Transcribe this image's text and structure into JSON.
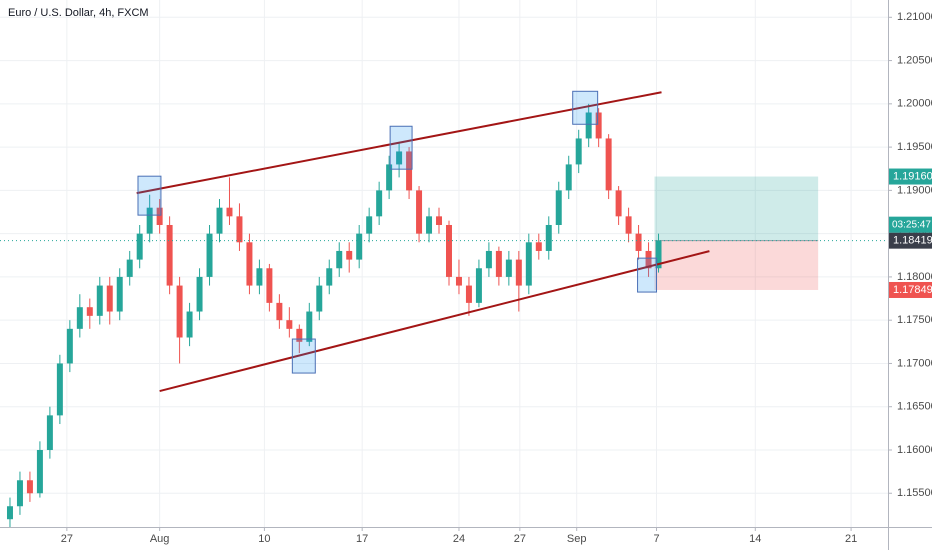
{
  "chart_data": {
    "type": "candlestick",
    "title": "Euro / U.S. Dollar, 4h, FXCM",
    "up_color": "#26a69a",
    "down_color": "#ef5350",
    "grid": true,
    "candles": [
      [
        1.152,
        1.1545,
        1.151,
        1.1535
      ],
      [
        1.1535,
        1.1575,
        1.1525,
        1.1565
      ],
      [
        1.1565,
        1.1575,
        1.154,
        1.155
      ],
      [
        1.155,
        1.161,
        1.1545,
        1.16
      ],
      [
        1.16,
        1.165,
        1.159,
        1.164
      ],
      [
        1.164,
        1.171,
        1.163,
        1.17
      ],
      [
        1.17,
        1.175,
        1.169,
        1.174
      ],
      [
        1.174,
        1.178,
        1.173,
        1.1765
      ],
      [
        1.1765,
        1.1775,
        1.174,
        1.1755
      ],
      [
        1.1755,
        1.18,
        1.1745,
        1.179
      ],
      [
        1.179,
        1.18,
        1.1745,
        1.176
      ],
      [
        1.176,
        1.181,
        1.175,
        1.18
      ],
      [
        1.18,
        1.183,
        1.179,
        1.182
      ],
      [
        1.182,
        1.186,
        1.181,
        1.185
      ],
      [
        1.185,
        1.1895,
        1.184,
        1.188
      ],
      [
        1.188,
        1.189,
        1.185,
        1.186
      ],
      [
        1.186,
        1.187,
        1.178,
        1.179
      ],
      [
        1.179,
        1.18,
        1.17,
        1.173
      ],
      [
        1.173,
        1.177,
        1.172,
        1.176
      ],
      [
        1.176,
        1.181,
        1.175,
        1.18
      ],
      [
        1.18,
        1.186,
        1.179,
        1.185
      ],
      [
        1.185,
        1.189,
        1.184,
        1.188
      ],
      [
        1.188,
        1.1915,
        1.186,
        1.187
      ],
      [
        1.187,
        1.1885,
        1.183,
        1.184
      ],
      [
        1.184,
        1.185,
        1.178,
        1.179
      ],
      [
        1.179,
        1.182,
        1.178,
        1.181
      ],
      [
        1.181,
        1.1815,
        1.176,
        1.177
      ],
      [
        1.177,
        1.178,
        1.174,
        1.175
      ],
      [
        1.175,
        1.1765,
        1.173,
        1.174
      ],
      [
        1.174,
        1.1745,
        1.1712,
        1.1725
      ],
      [
        1.1725,
        1.177,
        1.172,
        1.176
      ],
      [
        1.176,
        1.18,
        1.175,
        1.179
      ],
      [
        1.179,
        1.182,
        1.178,
        1.181
      ],
      [
        1.181,
        1.184,
        1.18,
        1.183
      ],
      [
        1.183,
        1.184,
        1.1805,
        1.182
      ],
      [
        1.182,
        1.186,
        1.181,
        1.185
      ],
      [
        1.185,
        1.188,
        1.184,
        1.187
      ],
      [
        1.187,
        1.191,
        1.186,
        1.19
      ],
      [
        1.19,
        1.194,
        1.189,
        1.193
      ],
      [
        1.193,
        1.1955,
        1.1915,
        1.1945
      ],
      [
        1.1945,
        1.195,
        1.189,
        1.19
      ],
      [
        1.19,
        1.1905,
        1.184,
        1.185
      ],
      [
        1.185,
        1.188,
        1.184,
        1.187
      ],
      [
        1.187,
        1.188,
        1.185,
        1.186
      ],
      [
        1.186,
        1.1865,
        1.179,
        1.18
      ],
      [
        1.18,
        1.182,
        1.178,
        1.179
      ],
      [
        1.179,
        1.18,
        1.1755,
        1.177
      ],
      [
        1.177,
        1.182,
        1.1765,
        1.181
      ],
      [
        1.181,
        1.184,
        1.18,
        1.183
      ],
      [
        1.183,
        1.1835,
        1.179,
        1.18
      ],
      [
        1.18,
        1.183,
        1.179,
        1.182
      ],
      [
        1.182,
        1.183,
        1.176,
        1.179
      ],
      [
        1.179,
        1.185,
        1.178,
        1.184
      ],
      [
        1.184,
        1.185,
        1.182,
        1.183
      ],
      [
        1.183,
        1.187,
        1.182,
        1.186
      ],
      [
        1.186,
        1.191,
        1.185,
        1.19
      ],
      [
        1.19,
        1.194,
        1.189,
        1.193
      ],
      [
        1.193,
        1.197,
        1.192,
        1.196
      ],
      [
        1.196,
        1.2,
        1.195,
        1.199
      ],
      [
        1.199,
        1.1995,
        1.195,
        1.196
      ],
      [
        1.196,
        1.1965,
        1.189,
        1.19
      ],
      [
        1.19,
        1.1905,
        1.186,
        1.187
      ],
      [
        1.187,
        1.188,
        1.184,
        1.185
      ],
      [
        1.185,
        1.186,
        1.182,
        1.183
      ],
      [
        1.183,
        1.184,
        1.18,
        1.181
      ],
      [
        1.181,
        1.185,
        1.1805,
        1.1842
      ]
    ],
    "xlim": [
      -1,
      88
    ],
    "xticks": [
      {
        "value": 5.7,
        "label": "27"
      },
      {
        "value": 15.0,
        "label": "Aug"
      },
      {
        "value": 25.5,
        "label": "10"
      },
      {
        "value": 35.3,
        "label": "17"
      },
      {
        "value": 45.0,
        "label": "24"
      },
      {
        "value": 51.1,
        "label": "27"
      },
      {
        "value": 56.8,
        "label": "Sep"
      },
      {
        "value": 64.8,
        "label": "7"
      },
      {
        "value": 74.7,
        "label": "14"
      },
      {
        "value": 84.3,
        "label": "21"
      }
    ],
    "ylim": [
      1.1511,
      1.212
    ],
    "yticks": [
      {
        "value": 1.155,
        "label": "1.15500"
      },
      {
        "value": 1.16,
        "label": "1.16000"
      },
      {
        "value": 1.165,
        "label": "1.16500"
      },
      {
        "value": 1.17,
        "label": "1.17000"
      },
      {
        "value": 1.175,
        "label": "1.17500"
      },
      {
        "value": 1.18,
        "label": "1.18000"
      },
      {
        "value": 1.185,
        "label": "1.18500"
      },
      {
        "value": 1.19,
        "label": "1.19000"
      },
      {
        "value": 1.195,
        "label": "1.19500"
      },
      {
        "value": 1.2,
        "label": "1.20000"
      },
      {
        "value": 1.205,
        "label": "1.20500"
      },
      {
        "value": 1.21,
        "label": "1.21000"
      }
    ],
    "trend_lines": [
      {
        "color": "#a31515",
        "x": [
          12.7,
          65.3
        ],
        "y": [
          1.18968,
          1.20134
        ]
      },
      {
        "color": "#a31515",
        "x": [
          15.0,
          70.1
        ],
        "y": [
          1.16681,
          1.18298
        ]
      }
    ],
    "boxes": [
      {
        "x": [
          12.83,
          15.13
        ],
        "y": [
          1.18714,
          1.19164
        ]
      },
      {
        "x": [
          38.1,
          40.3
        ],
        "y": [
          1.19245,
          1.19741
        ]
      },
      {
        "x": [
          56.4,
          58.9
        ],
        "y": [
          1.19764,
          1.20145
        ]
      },
      {
        "x": [
          28.3,
          30.6
        ],
        "y": [
          1.16889,
          1.17282
        ]
      },
      {
        "x": [
          62.9,
          64.8
        ],
        "y": [
          1.17825,
          1.18217
        ]
      }
    ],
    "position": {
      "x": [
        64.6,
        81.0
      ],
      "target": {
        "value": 1.1916,
        "label": "1.19160"
      },
      "entry": {
        "value": 1.18419,
        "label": "1.18419"
      },
      "stop": {
        "value": 1.17849,
        "label": "1.17849"
      }
    },
    "countdown": "03:25:47"
  }
}
